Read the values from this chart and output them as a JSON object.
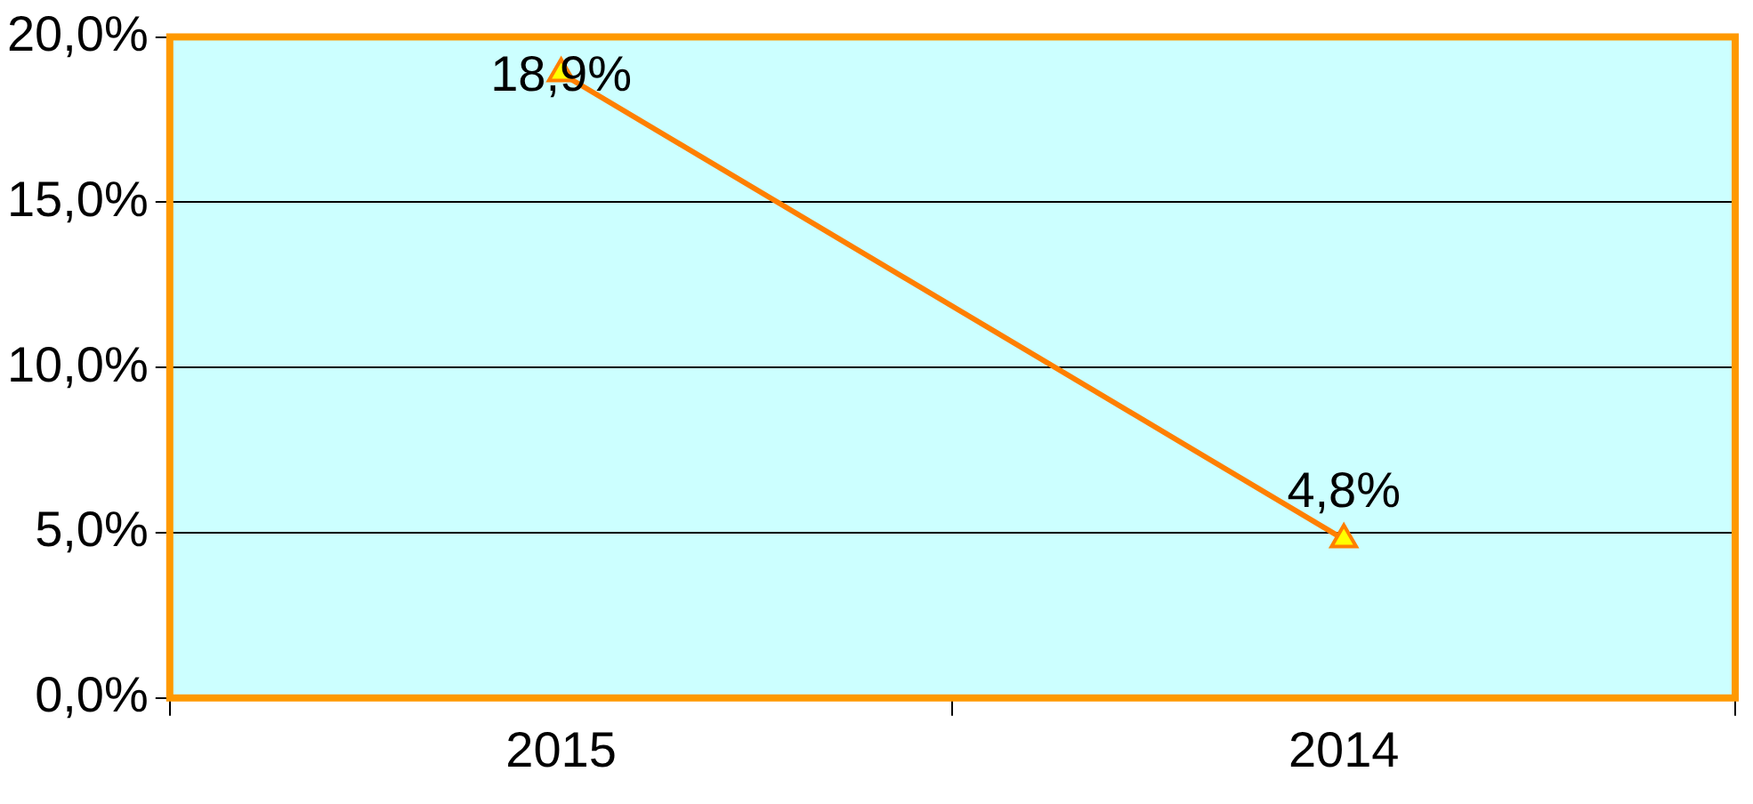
{
  "chart_data": {
    "type": "line",
    "categories": [
      "2015",
      "2014"
    ],
    "series": [
      {
        "color": "#ff7f00",
        "values": [
          18.9,
          4.8
        ],
        "value_labels": [
          "18,9%",
          "4,8%"
        ]
      }
    ],
    "ylim": [
      0,
      20
    ],
    "yticks": [
      {
        "value": 0,
        "label": "0,0%"
      },
      {
        "value": 5,
        "label": "5,0%"
      },
      {
        "value": 10,
        "label": "10,0%"
      },
      {
        "value": 15,
        "label": "15,0%"
      },
      {
        "value": 20,
        "label": "20,0%"
      }
    ],
    "grid": "y",
    "legend": false,
    "marker": "triangle",
    "line_style": "solid"
  }
}
